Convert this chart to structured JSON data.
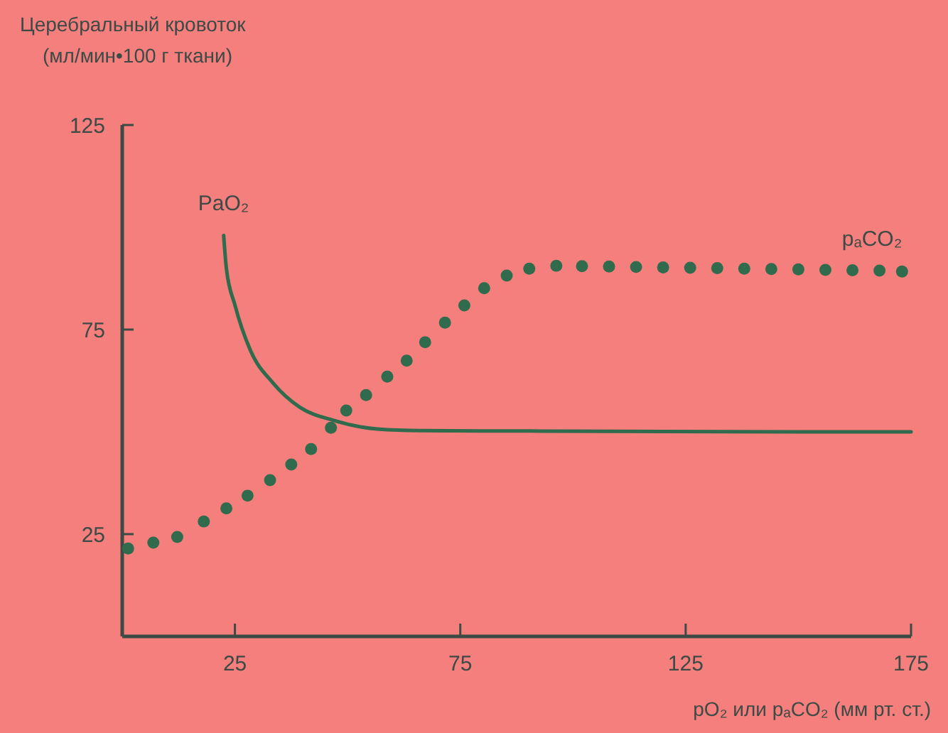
{
  "chart_data": {
    "type": "line",
    "ylabel": "Церебральный кровоток\n(мл/мин•100 г ткани)",
    "xlabel": "pO₂ или pₐCO₂ (мм рт. ст.)",
    "xlim": [
      0,
      175
    ],
    "ylim": [
      0,
      125
    ],
    "xticks": [
      25,
      75,
      125,
      175
    ],
    "yticks": [
      25,
      75,
      125
    ],
    "grid": false,
    "series": [
      {
        "name": "PaO₂",
        "color": "#2f6b4c",
        "line_style": "solid",
        "marker": "none",
        "x": [
          22.5,
          23.1,
          25,
          28.4,
          33.4,
          39.4,
          46.9,
          56.6,
          66,
          90,
          120,
          150,
          175
        ],
        "values": [
          98,
          90,
          81,
          70,
          62,
          56,
          52.8,
          50.7,
          50.3,
          50.2,
          50.1,
          50,
          50
        ]
      },
      {
        "name": "pₐCO₂",
        "type": "scatter",
        "color": "#2f6b4c",
        "marker": "circle",
        "x": [
          1.3,
          6.9,
          12.2,
          18.1,
          23.1,
          27.8,
          32.8,
          37.5,
          41.9,
          46.3,
          49.7,
          54.1,
          58.8,
          63.1,
          67.2,
          71.6,
          75.9,
          80.3,
          85.3,
          90.3,
          96.3,
          102,
          108,
          114,
          120,
          126,
          132,
          138,
          144,
          150,
          156,
          162,
          168,
          173
        ],
        "values": [
          21.5,
          22.9,
          24.3,
          28.1,
          31.3,
          34.4,
          38.2,
          42,
          45.8,
          51,
          55.2,
          59,
          63.5,
          67.4,
          71.9,
          76.7,
          80.9,
          85.1,
          88.2,
          89.9,
          90.6,
          90.5,
          90.4,
          90.3,
          90.2,
          90.1,
          90,
          89.9,
          89.8,
          89.7,
          89.6,
          89.5,
          89.4,
          89.2
        ]
      }
    ]
  }
}
